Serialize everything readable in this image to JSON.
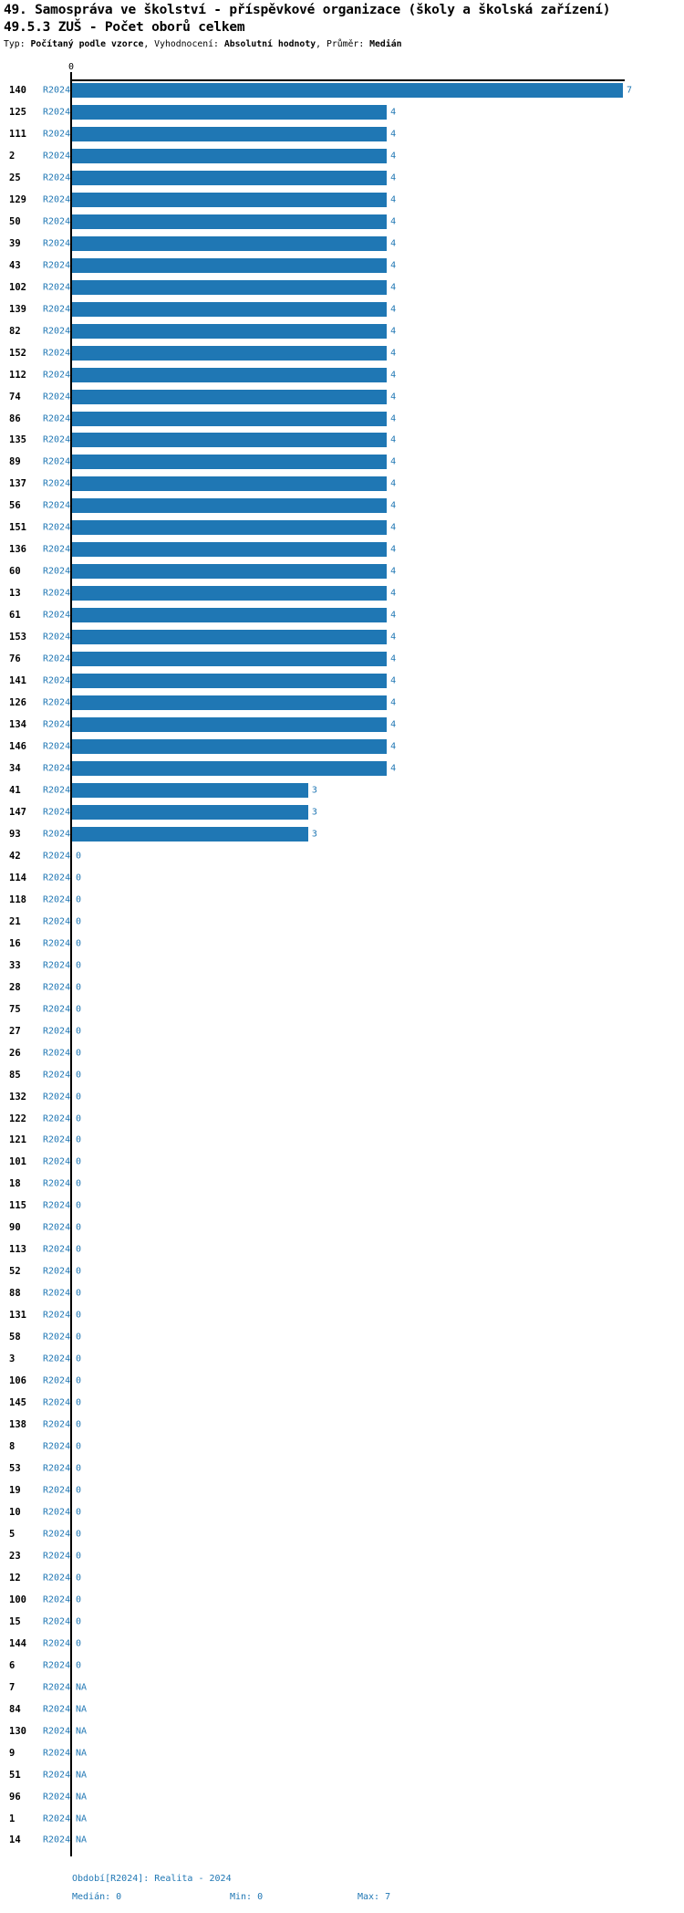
{
  "header": {
    "title_line1": "49. Samospráva ve školství - příspěvkové organizace (školy a školská zařízení)",
    "title_line2": "49.5.3 ZUŠ - Počet oborů celkem",
    "meta": {
      "t1": "Typ: ",
      "v1": "Počítaný podle vzorce",
      "s1": ", ",
      "t2": "Vyhodnocení: ",
      "v2": "Absolutní hodnoty",
      "s2": ", ",
      "t3": "Průměr: ",
      "v3": "Medián"
    }
  },
  "colors": {
    "bar": "#1f77b4",
    "blue_text": "#2077b4",
    "axis": "#000000"
  },
  "axis": {
    "zero_tick_label": "0"
  },
  "chart_data": {
    "type": "bar",
    "orientation": "horizontal",
    "title": "49.5.3 ZUŠ - Počet oborů celkem",
    "xlabel": "",
    "ylabel": "",
    "xlim": [
      0,
      7
    ],
    "grid": false,
    "na_text": "NA",
    "categories": [
      "140",
      "125",
      "111",
      "2",
      "25",
      "129",
      "50",
      "39",
      "43",
      "102",
      "139",
      "82",
      "152",
      "112",
      "74",
      "86",
      "135",
      "89",
      "137",
      "56",
      "151",
      "136",
      "60",
      "13",
      "61",
      "153",
      "76",
      "141",
      "126",
      "134",
      "146",
      "34",
      "41",
      "147",
      "93",
      "42",
      "114",
      "118",
      "21",
      "16",
      "33",
      "28",
      "75",
      "27",
      "26",
      "85",
      "132",
      "122",
      "121",
      "101",
      "18",
      "115",
      "90",
      "113",
      "52",
      "88",
      "131",
      "58",
      "3",
      "106",
      "145",
      "138",
      "8",
      "53",
      "19",
      "10",
      "5",
      "23",
      "12",
      "100",
      "15",
      "144",
      "6",
      "7",
      "84",
      "130",
      "9",
      "51",
      "96",
      "1",
      "14"
    ],
    "series": [
      {
        "name": "R2024",
        "values": [
          7,
          4,
          4,
          4,
          4,
          4,
          4,
          4,
          4,
          4,
          4,
          4,
          4,
          4,
          4,
          4,
          4,
          4,
          4,
          4,
          4,
          4,
          4,
          4,
          4,
          4,
          4,
          4,
          4,
          4,
          4,
          4,
          3,
          3,
          3,
          0,
          0,
          0,
          0,
          0,
          0,
          0,
          0,
          0,
          0,
          0,
          0,
          0,
          0,
          0,
          0,
          0,
          0,
          0,
          0,
          0,
          0,
          0,
          0,
          0,
          0,
          0,
          0,
          0,
          0,
          0,
          0,
          0,
          0,
          0,
          0,
          0,
          0,
          null,
          null,
          null,
          null,
          null,
          null,
          null,
          null
        ]
      }
    ]
  },
  "footer": {
    "period": "Období[R2024]: Realita - 2024",
    "median": "Medián: 0",
    "min": "Min: 0",
    "max": "Max: 7"
  }
}
